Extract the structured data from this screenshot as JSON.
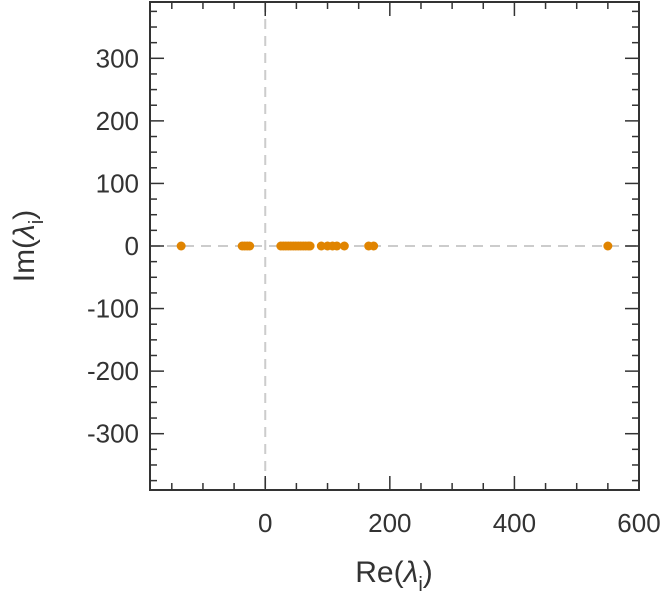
{
  "chart_data": {
    "type": "scatter",
    "title": "",
    "xlabel": {
      "prefix": "Re(",
      "symbol": "λ",
      "subscript": "i",
      "suffix": ")"
    },
    "ylabel": {
      "prefix": "Im(",
      "symbol": "λ",
      "subscript": "i",
      "suffix": ")"
    },
    "xlim": [
      -185,
      600
    ],
    "ylim": [
      -390,
      390
    ],
    "xticks": [
      0,
      200,
      400,
      600
    ],
    "yticks": [
      300,
      200,
      100,
      0,
      -100,
      -200,
      -300
    ],
    "xtick_labels": [
      "0",
      "200",
      "400",
      "600"
    ],
    "ytick_labels": [
      "300",
      "200",
      "100",
      "0",
      "-100",
      "-200",
      "-300"
    ],
    "minor_x_step": 50,
    "minor_y_step": 25,
    "grid": false,
    "reference_lines": {
      "x": 0,
      "y": 0,
      "style": "dashed"
    },
    "marker_color": "#e08400",
    "reference_line_color": "#cccccc",
    "axis_color": "#333333",
    "points": [
      {
        "x": -135,
        "y": 0
      },
      {
        "x": -37,
        "y": 0
      },
      {
        "x": -33,
        "y": 0
      },
      {
        "x": -29,
        "y": 0
      },
      {
        "x": -25,
        "y": 0
      },
      {
        "x": 25,
        "y": 0
      },
      {
        "x": 29,
        "y": 0
      },
      {
        "x": 33,
        "y": 0
      },
      {
        "x": 37,
        "y": 0
      },
      {
        "x": 41,
        "y": 0
      },
      {
        "x": 45,
        "y": 0
      },
      {
        "x": 49,
        "y": 0
      },
      {
        "x": 53,
        "y": 0
      },
      {
        "x": 57,
        "y": 0
      },
      {
        "x": 61,
        "y": 0
      },
      {
        "x": 65,
        "y": 0
      },
      {
        "x": 69,
        "y": 0
      },
      {
        "x": 72,
        "y": 0
      },
      {
        "x": 90,
        "y": 0
      },
      {
        "x": 100,
        "y": 0
      },
      {
        "x": 108,
        "y": 0
      },
      {
        "x": 115,
        "y": 0
      },
      {
        "x": 127,
        "y": 0
      },
      {
        "x": 166,
        "y": 0
      },
      {
        "x": 174,
        "y": 0
      },
      {
        "x": 550,
        "y": 0
      }
    ]
  }
}
